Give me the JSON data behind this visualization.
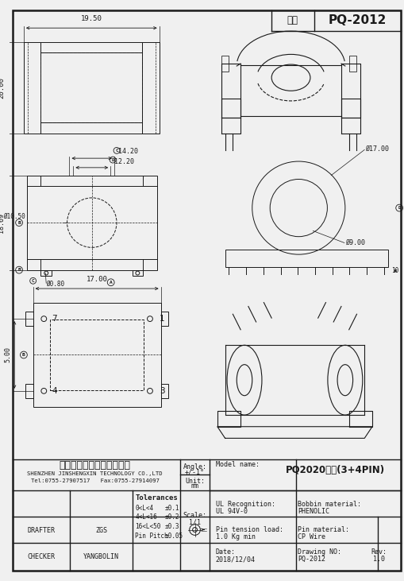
{
  "bg_color": "#f0f0f0",
  "draw_color": "#1a1a1a",
  "title_label1": "型号",
  "title_label2": "PQ-2012",
  "company_cn": "深圳市金盛鑫科技有限公司",
  "company_en": "SHENZHEN JINSHENGXIN TECHNOLOGY CO.,LTD",
  "company_tel": "Tel:0755-27907517   Fax:0755-27914097",
  "model_name": "PQ2020卧式(3+4PIN)",
  "ul_recognition": "UL Recognition:",
  "ul_value": "UL 94V-0",
  "bobbin_label": "Bobbin material:",
  "bobbin_value": "PHENOLIC",
  "pin_tension_label": "Pin tension load:",
  "pin_tension_value": "1.0 Kg min",
  "pin_material_label": "Pin material:",
  "pin_material_value": "CP Wire",
  "date_label": "Date:",
  "date_value": "2018/12/04",
  "drawing_no_label": "Drawing NO:",
  "drawing_no_value": "PQ-2012",
  "rev_label": "Rev:",
  "rev_value": "1.0",
  "drafter_label": "DRAFTER",
  "drafter_name": "ZGS",
  "checker_label": "CHECKER",
  "checker_name": "YANGBOLIN",
  "tol_title": "Tolerances",
  "tol_rows": [
    [
      "0<L<4",
      "±0.1"
    ],
    [
      "4<L<16",
      "±0.2"
    ],
    [
      "16<L<50",
      "±0.3"
    ],
    [
      "Pin Pitch",
      "±0.05"
    ]
  ],
  "angle_text": "Angle:\n+/-1°",
  "unit_text": "Unit:\nmm",
  "scale_text": "Scale:\n1/1",
  "dim_1950": "19.50",
  "dim_2000": "20.00",
  "dim_1420": "14.20",
  "dim_1220": "12.20",
  "dim_1869": "18.69",
  "dim_1050": "Ø10.50",
  "dim_080": "Ø0.80",
  "dim_1700": "17.00",
  "dim_500": "5.00",
  "dim_1700_r": "Ø17.00",
  "dim_900": "Ø9.00",
  "dim_10": "10"
}
